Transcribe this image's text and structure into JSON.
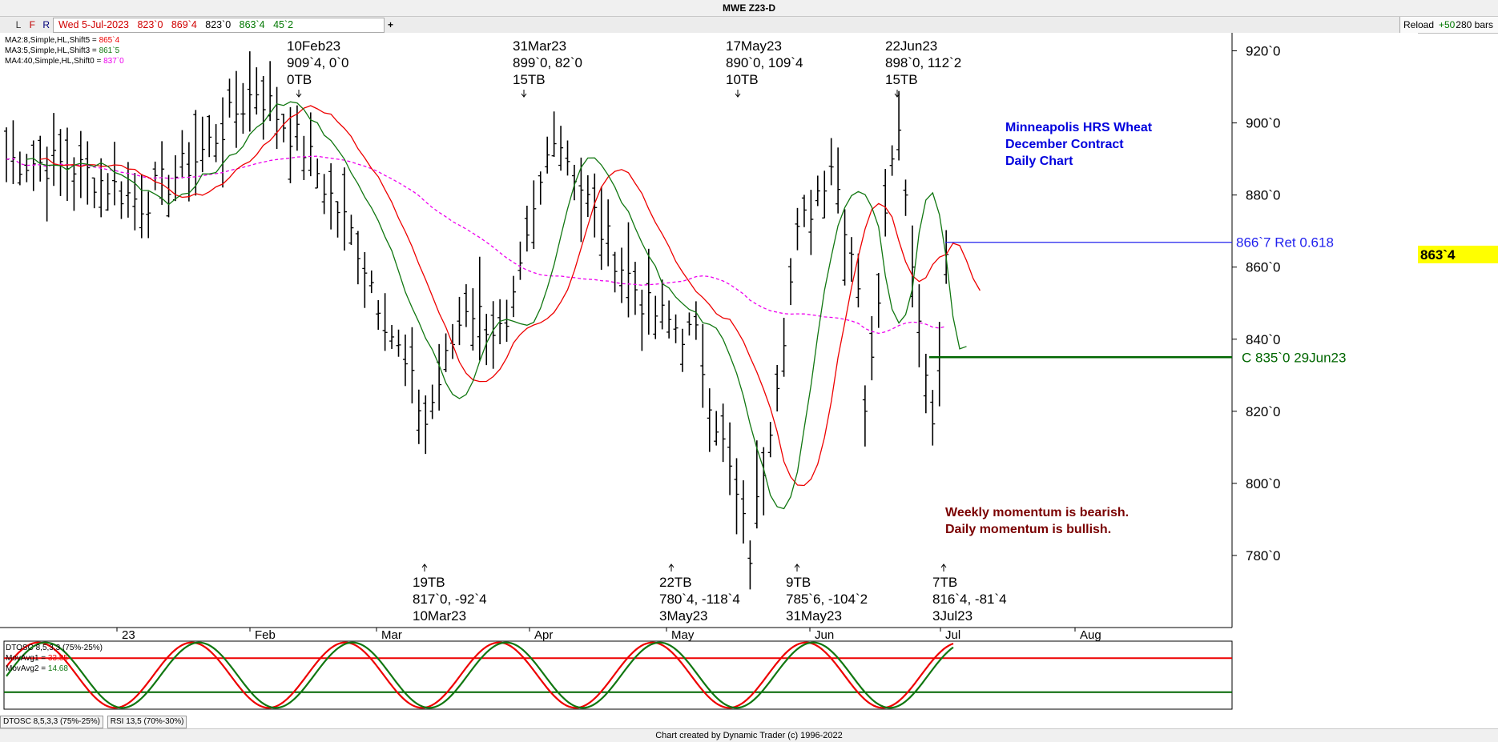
{
  "window": {
    "title": "MWE Z23-D"
  },
  "toolbar": {
    "buttons": [
      "L",
      "F",
      "R"
    ],
    "date": "Wed 5-Jul-2023",
    "open": "823`0",
    "high": "869`4",
    "low": "823`0",
    "close": "863`4",
    "change": "45`2",
    "plus": "+",
    "reload_label": "Reload",
    "reload_count": "+50",
    "bars_label": "280 bars"
  },
  "legend": {
    "ma2_label": "MA2:8,Simple,HL,Shift5 = ",
    "ma2_value": "865`4",
    "ma3_label": "MA3:5,Simple,HL,Shift3 = ",
    "ma3_value": "861`5",
    "ma4_label": "MA4:40,Simple,HL,Shift0 = ",
    "ma4_value": "837`0"
  },
  "annotations": {
    "top": [
      {
        "date": "10Feb23",
        "price": "909`4, 0`0",
        "tb": "0TB"
      },
      {
        "date": "31Mar23",
        "price": "899`0, 82`0",
        "tb": "15TB"
      },
      {
        "date": "17May23",
        "price": "890`0, 109`4",
        "tb": "10TB"
      },
      {
        "date": "22Jun23",
        "price": "898`0, 112`2",
        "tb": "15TB"
      }
    ],
    "bottom": [
      {
        "tb": "19TB",
        "price": "817`0, -92`4",
        "date": "10Mar23"
      },
      {
        "tb": "22TB",
        "price": "780`4, -118`4",
        "date": "3May23"
      },
      {
        "tb": "9TB",
        "price": "785`6, -104`2",
        "date": "31May23"
      },
      {
        "tb": "7TB",
        "price": "816`4, -81`4",
        "date": "3Jul23"
      }
    ]
  },
  "notes": {
    "blue": [
      "Minneapolis HRS Wheat",
      "December Contract",
      "Daily Chart"
    ],
    "red": [
      "Weekly momentum is bearish.",
      "Daily momentum is bullish."
    ]
  },
  "levels": {
    "retracement_label": "866`7 Ret 0.618",
    "close_label": "C 835`0 29Jun23",
    "current_price_label": "863`4"
  },
  "oscillator": {
    "title": "DTOSC 8,5,3,3 (75%-25%)",
    "mov1_label": "MovAvg1 = ",
    "mov1_value": "33.85",
    "mov2_label": "MovAvg2 = ",
    "mov2_value": "14.68",
    "tabs": [
      "DTOSC 8,5,3,3 (75%-25%)",
      "RSI 13,5 (70%-30%)"
    ]
  },
  "footer": {
    "credit": "Chart created by Dynamic Trader  (c) 1996-2022"
  },
  "colors": {
    "ma2": "#ee0000",
    "ma3": "#117711",
    "ma4": "#ee00ee",
    "retracement": "#2222ee",
    "close_level": "#006600",
    "price_tag": "#ffff00",
    "note_blue": "#0000dd",
    "note_red": "#7a0000"
  },
  "chart_data": {
    "type": "ohlc",
    "title": "MWE Z23-D",
    "y_axis": {
      "min": 760,
      "max": 925,
      "ticks": [
        "780`0",
        "800`0",
        "820`0",
        "840`0",
        "860`0",
        "880`0",
        "900`0",
        "920`0"
      ],
      "tick_values": [
        780,
        800,
        820,
        840,
        860,
        880,
        900,
        920
      ]
    },
    "x_axis": {
      "labels": [
        "23",
        "Feb",
        "Mar",
        "Apr",
        "May",
        "Jun",
        "Jul",
        "Aug"
      ]
    },
    "swings": [
      {
        "date": "10Feb23",
        "price": 909.5,
        "kind": "high"
      },
      {
        "date": "10Mar23",
        "price": 817.0,
        "kind": "low"
      },
      {
        "date": "31Mar23",
        "price": 899.0,
        "kind": "high"
      },
      {
        "date": "3May23",
        "price": 780.5,
        "kind": "low"
      },
      {
        "date": "17May23",
        "price": 890.0,
        "kind": "high"
      },
      {
        "date": "31May23",
        "price": 785.75,
        "kind": "low"
      },
      {
        "date": "22Jun23",
        "price": 898.0,
        "kind": "high"
      },
      {
        "date": "3Jul23",
        "price": 816.5,
        "kind": "low"
      }
    ],
    "horizontal_levels": [
      {
        "label": "866`7 Ret 0.618",
        "price": 866.875
      },
      {
        "label": "C 835`0 29Jun23",
        "price": 835.0
      }
    ],
    "last_price": 863.5,
    "oscillator": {
      "name": "DTOSC 8,5,3,3",
      "upper": 75,
      "lower": 25,
      "movavg1": 33.85,
      "movavg2": 14.68
    },
    "grid": false,
    "legend_placement": "top-left"
  }
}
